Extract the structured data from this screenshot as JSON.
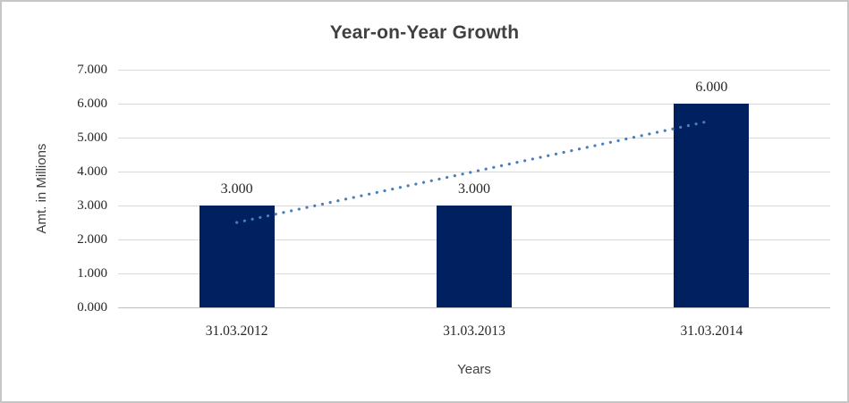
{
  "chart_data": {
    "type": "bar",
    "title": "Year-on-Year Growth",
    "categories": [
      "31.03.2012",
      "31.03.2013",
      "31.03.2014"
    ],
    "values": [
      3,
      3,
      6
    ],
    "data_labels": [
      "3.000",
      "3.000",
      "6.000"
    ],
    "xlabel": "Years",
    "ylabel": "Amt. in Millions",
    "ylim": [
      0,
      7
    ],
    "ytick_labels": [
      "0.000",
      "1.000",
      "2.000",
      "3.000",
      "4.000",
      "5.000",
      "6.000",
      "7.000"
    ],
    "grid": true,
    "legend_position": "none",
    "colors": {
      "bar": "#002060",
      "trendline": "#4A7EBB",
      "gridline": "#D9D9D9",
      "axis_line": "#BFBFBF",
      "title_text": "#404040",
      "tick_text": "#262626",
      "frame_border": "#C6C6C6"
    },
    "trendline": {
      "type": "linear",
      "style": "dotted",
      "values_at_categories": [
        2.5,
        4.0,
        5.5
      ]
    }
  }
}
